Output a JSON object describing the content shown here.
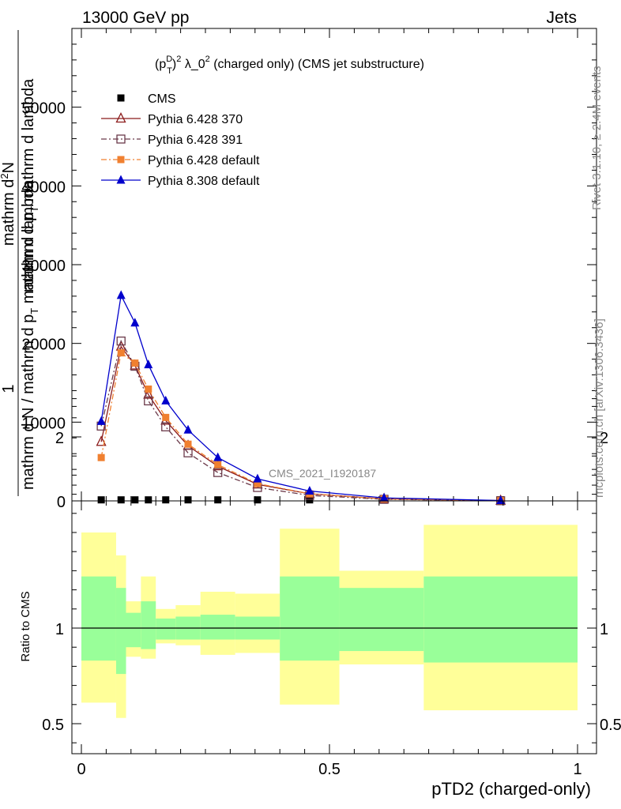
{
  "header": {
    "left": "13000 GeV pp",
    "right": "Jets"
  },
  "side_labels": {
    "rivet": "Rivet 3.1.10, ≥ 2.4M events",
    "mcplots": "mcplots.cern.ch [arXiv:1306.3436]"
  },
  "watermark": "CMS_2021_I1920187",
  "colors": {
    "cms": "#000000",
    "p370": "#8b1a1a",
    "p391": "#6b3a4a",
    "p6def": "#f08030",
    "p8": "#0000cc",
    "band_inner": "#99ff99",
    "band_outer": "#ffff99"
  },
  "chart_data": [
    {
      "type": "line",
      "title": "(p_T^D)^2 λ_0^2 (charged only) (CMS jet substructure)",
      "title_parts": {
        "base": "(p",
        "sub": "T",
        "sup": "D",
        "exp": "2",
        "rest": " λ_0",
        "exp2": "2",
        "tail": " (charged only) (CMS jet substructure)"
      },
      "ylabel": "1 / mathrm d N / mathrm d p_T mathrm d lambda  mathrm d^2N / mathrm d p_T mathrm d lambda",
      "ylabel_parts": {
        "num": "1",
        "den": "mathrm d N / mathrm d p",
        "den_sub": "T",
        "den_tail": " mathrm d lambda",
        "num2": "mathrm d",
        "num2_sup": "2",
        "num2_tail": "N",
        "den2": "mathrm d p",
        "den2_sub": "T",
        "den2_tail": " mathrm d lambda"
      },
      "xlim": [
        0,
        1
      ],
      "ylim": [
        0,
        60000
      ],
      "yticks": [
        0,
        10000,
        20000,
        30000,
        40000,
        50000
      ],
      "ytick_labels": [
        "0",
        "10000",
        "20000",
        "30000",
        "40000",
        "50000"
      ],
      "legend_placement": "top-left",
      "x": [
        0.04,
        0.08,
        0.108,
        0.135,
        0.17,
        0.215,
        0.275,
        0.355,
        0.46,
        0.61,
        0.845
      ],
      "series": [
        {
          "name": "CMS",
          "key": "cms",
          "marker": "square",
          "values": [
            30,
            30,
            30,
            30,
            30,
            30,
            30,
            30,
            30,
            30,
            30
          ]
        },
        {
          "name": "Pythia 6.428 370",
          "key": "p370",
          "marker": "triangle-open",
          "line": "solid",
          "values": [
            7500,
            19600,
            17200,
            13500,
            10200,
            7000,
            4400,
            2100,
            900,
            250,
            30
          ]
        },
        {
          "name": "Pythia 6.428 391",
          "key": "p391",
          "marker": "square-open",
          "line": "dashdot",
          "values": [
            9500,
            20300,
            17100,
            12700,
            9400,
            6100,
            3600,
            1700,
            700,
            200,
            20
          ]
        },
        {
          "name": "Pythia 6.428 default",
          "key": "p6def",
          "marker": "square",
          "line": "dashdot",
          "values": [
            5500,
            18800,
            17500,
            14200,
            10600,
            7200,
            4600,
            2200,
            900,
            250,
            30
          ]
        },
        {
          "name": "Pythia 8.308 default",
          "key": "p8",
          "marker": "triangle",
          "line": "solid",
          "values": [
            10100,
            26100,
            22600,
            17300,
            12700,
            9000,
            5500,
            2800,
            1250,
            380,
            50
          ]
        }
      ]
    },
    {
      "type": "area",
      "ylabel": "Ratio to CMS",
      "xlabel": "pTD2 (charged-only)",
      "xlim": [
        0,
        1
      ],
      "ylim": [
        0.35,
        2.3
      ],
      "yticks": [
        0.5,
        1,
        2
      ],
      "ytick_labels": [
        "0.5",
        "1",
        "2"
      ],
      "xticks": [
        0,
        0.5,
        1
      ],
      "xtick_labels": [
        "0",
        "0.5",
        "1"
      ],
      "reference": 1,
      "bins": [
        {
          "lo": 0.0,
          "hi": 0.07,
          "inner": [
            0.83,
            1.27
          ],
          "outer": [
            0.61,
            1.5
          ]
        },
        {
          "lo": 0.07,
          "hi": 0.09,
          "inner": [
            0.76,
            1.21
          ],
          "outer": [
            0.53,
            1.38
          ]
        },
        {
          "lo": 0.09,
          "hi": 0.12,
          "inner": [
            0.9,
            1.08
          ],
          "outer": [
            0.85,
            1.14
          ]
        },
        {
          "lo": 0.12,
          "hi": 0.15,
          "inner": [
            0.89,
            1.14
          ],
          "outer": [
            0.84,
            1.27
          ]
        },
        {
          "lo": 0.15,
          "hi": 0.19,
          "inner": [
            0.94,
            1.05
          ],
          "outer": [
            0.92,
            1.1
          ]
        },
        {
          "lo": 0.19,
          "hi": 0.24,
          "inner": [
            0.94,
            1.06
          ],
          "outer": [
            0.91,
            1.12
          ]
        },
        {
          "lo": 0.24,
          "hi": 0.31,
          "inner": [
            0.94,
            1.07
          ],
          "outer": [
            0.86,
            1.19
          ]
        },
        {
          "lo": 0.31,
          "hi": 0.4,
          "inner": [
            0.94,
            1.06
          ],
          "outer": [
            0.87,
            1.18
          ]
        },
        {
          "lo": 0.4,
          "hi": 0.52,
          "inner": [
            0.83,
            1.27
          ],
          "outer": [
            0.6,
            1.52
          ]
        },
        {
          "lo": 0.52,
          "hi": 0.69,
          "inner": [
            0.88,
            1.21
          ],
          "outer": [
            0.81,
            1.3
          ]
        },
        {
          "lo": 0.69,
          "hi": 1.0,
          "inner": [
            0.82,
            1.27
          ],
          "outer": [
            0.57,
            1.54
          ]
        }
      ]
    }
  ]
}
